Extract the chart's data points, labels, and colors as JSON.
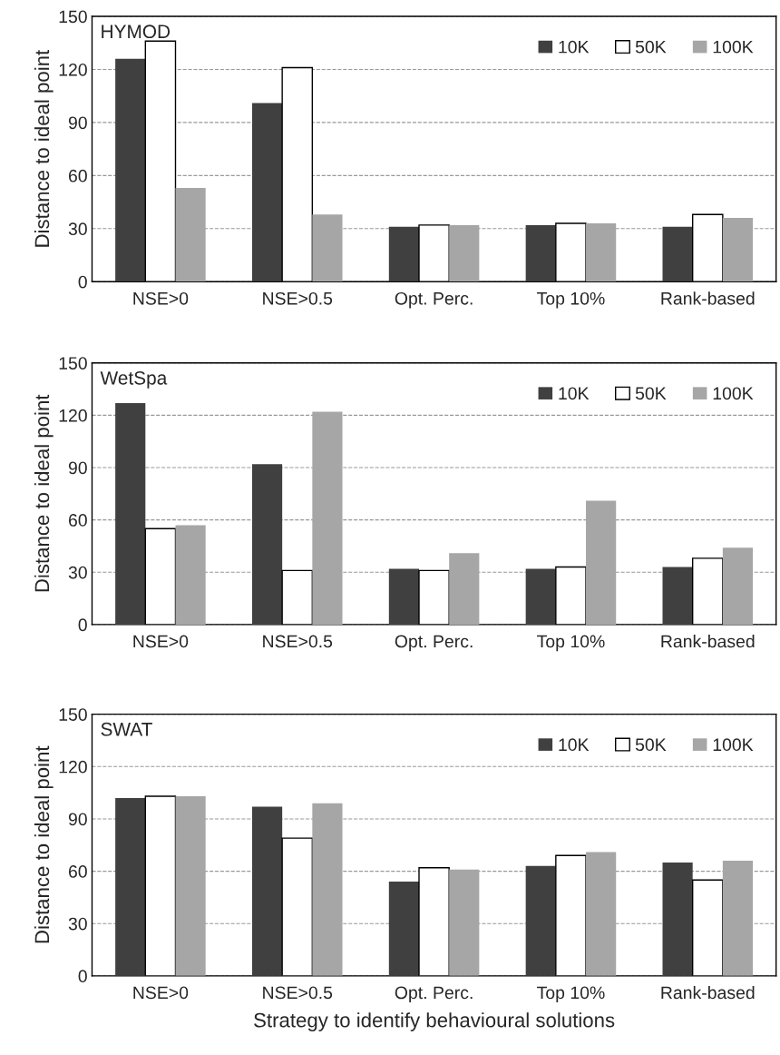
{
  "chart_data": [
    {
      "type": "bar",
      "title": "HYMOD",
      "ylabel": "Distance to ideal point",
      "categories": [
        "NSE>0",
        "NSE>0.5",
        "Opt. Perc.",
        "Top 10%",
        "Rank-based"
      ],
      "ylim": [
        0,
        150
      ],
      "yticks": [
        0,
        30,
        60,
        90,
        120,
        150
      ],
      "grid": "y",
      "legend": "top right",
      "series": [
        {
          "name": "10K",
          "color": "#404040",
          "values": [
            126,
            101,
            31,
            32,
            31
          ]
        },
        {
          "name": "50K",
          "color": "#ffffff",
          "values": [
            136,
            121,
            32,
            33,
            38
          ]
        },
        {
          "name": "100K",
          "color": "#a6a6a6",
          "values": [
            53,
            38,
            32,
            33,
            36
          ]
        }
      ]
    },
    {
      "type": "bar",
      "title": "WetSpa",
      "ylabel": "Distance to ideal point",
      "categories": [
        "NSE>0",
        "NSE>0.5",
        "Opt. Perc.",
        "Top 10%",
        "Rank-based"
      ],
      "ylim": [
        0,
        150
      ],
      "yticks": [
        0,
        30,
        60,
        90,
        120,
        150
      ],
      "grid": "y",
      "legend": "top right",
      "series": [
        {
          "name": "10K",
          "color": "#404040",
          "values": [
            127,
            92,
            32,
            32,
            33
          ]
        },
        {
          "name": "50K",
          "color": "#ffffff",
          "values": [
            55,
            31,
            31,
            33,
            38
          ]
        },
        {
          "name": "100K",
          "color": "#a6a6a6",
          "values": [
            57,
            122,
            41,
            71,
            44
          ]
        }
      ]
    },
    {
      "type": "bar",
      "title": "SWAT",
      "ylabel": "Distance to ideal point",
      "xlabel": "Strategy to identify behavioural solutions",
      "categories": [
        "NSE>0",
        "NSE>0.5",
        "Opt. Perc.",
        "Top 10%",
        "Rank-based"
      ],
      "ylim": [
        0,
        150
      ],
      "yticks": [
        0,
        30,
        60,
        90,
        120,
        150
      ],
      "grid": "y",
      "legend": "top right",
      "series": [
        {
          "name": "10K",
          "color": "#404040",
          "values": [
            102,
            97,
            54,
            63,
            65
          ]
        },
        {
          "name": "50K",
          "color": "#ffffff",
          "values": [
            103,
            79,
            62,
            69,
            55
          ]
        },
        {
          "name": "100K",
          "color": "#a6a6a6",
          "values": [
            103,
            99,
            61,
            71,
            66
          ]
        }
      ]
    }
  ]
}
